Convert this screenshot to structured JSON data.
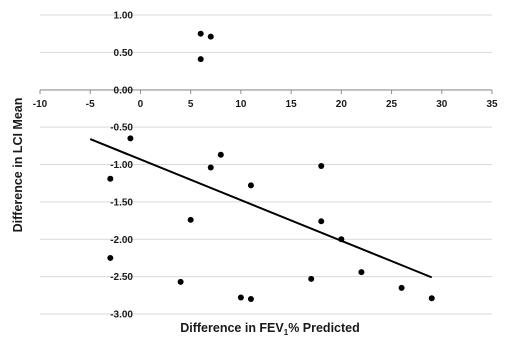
{
  "chart_data": {
    "type": "scatter",
    "title": "",
    "xlabel_pre": "Difference in FEV",
    "xlabel_sub": "1",
    "xlabel_post": "% Predicted",
    "ylabel": "Difference in LCI Mean",
    "xlim": [
      -10,
      35
    ],
    "ylim": [
      -3.0,
      1.0
    ],
    "x_ticks": [
      "-10",
      "-5",
      "0",
      "5",
      "10",
      "15",
      "20",
      "25",
      "30",
      "35"
    ],
    "y_ticks": [
      "1.00",
      "0.50",
      "0.00",
      "-0.50",
      "-1.00",
      "-1.50",
      "-2.00",
      "-2.50",
      "-3.00"
    ],
    "grid": "horizontal",
    "points": [
      {
        "x": 6,
        "y": 0.75
      },
      {
        "x": 7,
        "y": 0.71
      },
      {
        "x": 6,
        "y": 0.41
      },
      {
        "x": -1,
        "y": -0.65
      },
      {
        "x": 8,
        "y": -0.87
      },
      {
        "x": 7,
        "y": -1.04
      },
      {
        "x": 18,
        "y": -1.02
      },
      {
        "x": -3,
        "y": -1.19
      },
      {
        "x": 11,
        "y": -1.28
      },
      {
        "x": 5,
        "y": -1.74
      },
      {
        "x": 18,
        "y": -1.76
      },
      {
        "x": 20,
        "y": -2.0
      },
      {
        "x": -3,
        "y": -2.25
      },
      {
        "x": 22,
        "y": -2.44
      },
      {
        "x": 17,
        "y": -2.53
      },
      {
        "x": 4,
        "y": -2.57
      },
      {
        "x": 26,
        "y": -2.65
      },
      {
        "x": 10,
        "y": -2.78
      },
      {
        "x": 11,
        "y": -2.8
      },
      {
        "x": 29,
        "y": -2.79
      }
    ],
    "trendline": {
      "x": [
        -5,
        29
      ],
      "y": [
        -0.66,
        -2.51
      ]
    },
    "colors": {
      "points": "#000000",
      "trendline": "#000000",
      "grid": "#d9d9d9",
      "axis": "#8c8c8c"
    }
  }
}
